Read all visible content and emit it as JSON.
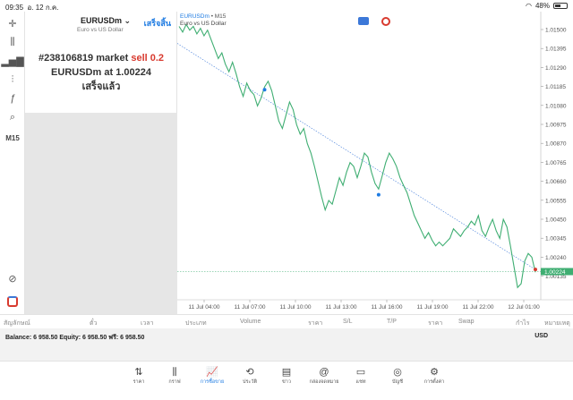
{
  "status": {
    "time": "09:35",
    "date": "อ. 12 ก.ค.",
    "battery": "48%",
    "battery_level": 0.48
  },
  "toolbar": {
    "timeframe": "M15"
  },
  "symbol": {
    "name": "EURUSDm",
    "description": "Euro vs US Dollar",
    "done_label": "เสร็จสิ้น"
  },
  "order": {
    "ticket": "#238106819",
    "type_text": "market",
    "side": "sell 0.2",
    "line2_prefix": "EURUSDm at",
    "price": "1.00224",
    "status": "เสร็จแล้ว"
  },
  "chart": {
    "title": "EURUSDm",
    "timeframe": "• M15",
    "subtitle": "Euro vs US Dollar",
    "current_price": "1.00224",
    "y_ticks": [
      "1.01500",
      "1.01395",
      "1.01290",
      "1.01185",
      "1.01080",
      "1.00975",
      "1.00870",
      "1.00765",
      "1.00660",
      "1.00555",
      "1.00450",
      "1.00345",
      "1.00240",
      "1.00135"
    ],
    "x_ticks": [
      "11 Jul 04:00",
      "11 Jul 07:00",
      "11 Jul 10:00",
      "11 Jul 13:00",
      "11 Jul 16:00",
      "11 Jul 19:00",
      "11 Jul 22:00",
      "12 Jul 01:00"
    ]
  },
  "chart_data": {
    "type": "line",
    "title": "EURUSDm • M15",
    "subtitle": "Euro vs US Dollar",
    "ylim": [
      1.00075,
      1.0156
    ],
    "current_price": 1.00224,
    "series": [
      {
        "values": [
          1.0152,
          1.0149,
          1.0153,
          1.015,
          1.0152,
          1.0148,
          1.0151,
          1.0147,
          1.015,
          1.0145,
          1.014,
          1.0135,
          1.0138,
          1.0132,
          1.0128,
          1.0133,
          1.0127,
          1.012,
          1.0115,
          1.0122,
          1.0118,
          1.0116,
          1.011,
          1.0114,
          1.012,
          1.0123,
          1.0118,
          1.011,
          1.0102,
          1.0098,
          1.0105,
          1.0112,
          1.0108,
          1.01,
          1.0095,
          1.0098,
          1.009,
          1.0085,
          1.0078,
          1.007,
          1.0062,
          1.0055,
          1.006,
          1.0058,
          1.0065,
          1.0072,
          1.0068,
          1.0075,
          1.008,
          1.0078,
          1.0072,
          1.0078,
          1.0085,
          1.0083,
          1.0075,
          1.0069,
          1.0066,
          1.0073,
          1.008,
          1.0085,
          1.0082,
          1.0078,
          1.0072,
          1.0068,
          1.0064,
          1.0058,
          1.0052,
          1.0048,
          1.0044,
          1.004,
          1.0043,
          1.0039,
          1.0036,
          1.0038,
          1.0036,
          1.0038,
          1.004,
          1.0045,
          1.0043,
          1.0041,
          1.0044,
          1.0046,
          1.0049,
          1.0047,
          1.0052,
          1.0044,
          1.0041,
          1.0046,
          1.005,
          1.0044,
          1.004,
          1.005,
          1.0046,
          1.0036,
          1.0025,
          1.0014,
          1.0016,
          1.0028,
          1.0032,
          1.003,
          1.0022
        ]
      }
    ],
    "markers": [
      {
        "index": 24,
        "value": 1.01185
      },
      {
        "index": 56,
        "value": 1.0063
      },
      {
        "index": 100,
        "value": 1.00235
      }
    ]
  },
  "columns": [
    "สัญลักษณ์",
    "ตั๋ว",
    "เวลา",
    "ประเภท",
    "Volume",
    "ราคา",
    "S/L",
    "T/P",
    "ราคา",
    "Swap",
    "กำไร",
    "หมายเหตุ"
  ],
  "balance": {
    "text": "Balance: 6 958.50 Equity: 6 958.50 ฟรี: 6 958.50",
    "currency": "USD"
  },
  "nav": {
    "items": [
      {
        "label": "ราคา",
        "icon": "quotes-arrows-icon",
        "glyph": "⇅"
      },
      {
        "label": "กราฟ",
        "icon": "chart-candles-icon",
        "glyph": "⫼"
      },
      {
        "label": "การซื้อขาย",
        "icon": "trade-icon",
        "glyph": "📈"
      },
      {
        "label": "ประวัติ",
        "icon": "history-icon",
        "glyph": "⟲"
      },
      {
        "label": "ข่าว",
        "icon": "news-icon",
        "glyph": "▤"
      },
      {
        "label": "กล่องจดหมาย",
        "icon": "mailbox-icon",
        "glyph": "@"
      },
      {
        "label": "แชท",
        "icon": "chat-icon",
        "glyph": "▭"
      },
      {
        "label": "บัญชี",
        "icon": "account-icon",
        "glyph": "◎"
      },
      {
        "label": "การตั้งค่า",
        "icon": "settings-icon",
        "glyph": "⚙"
      }
    ]
  },
  "colors": {
    "accent": "#1e7be2",
    "line": "#3fae72",
    "sell": "#d83a2f"
  }
}
